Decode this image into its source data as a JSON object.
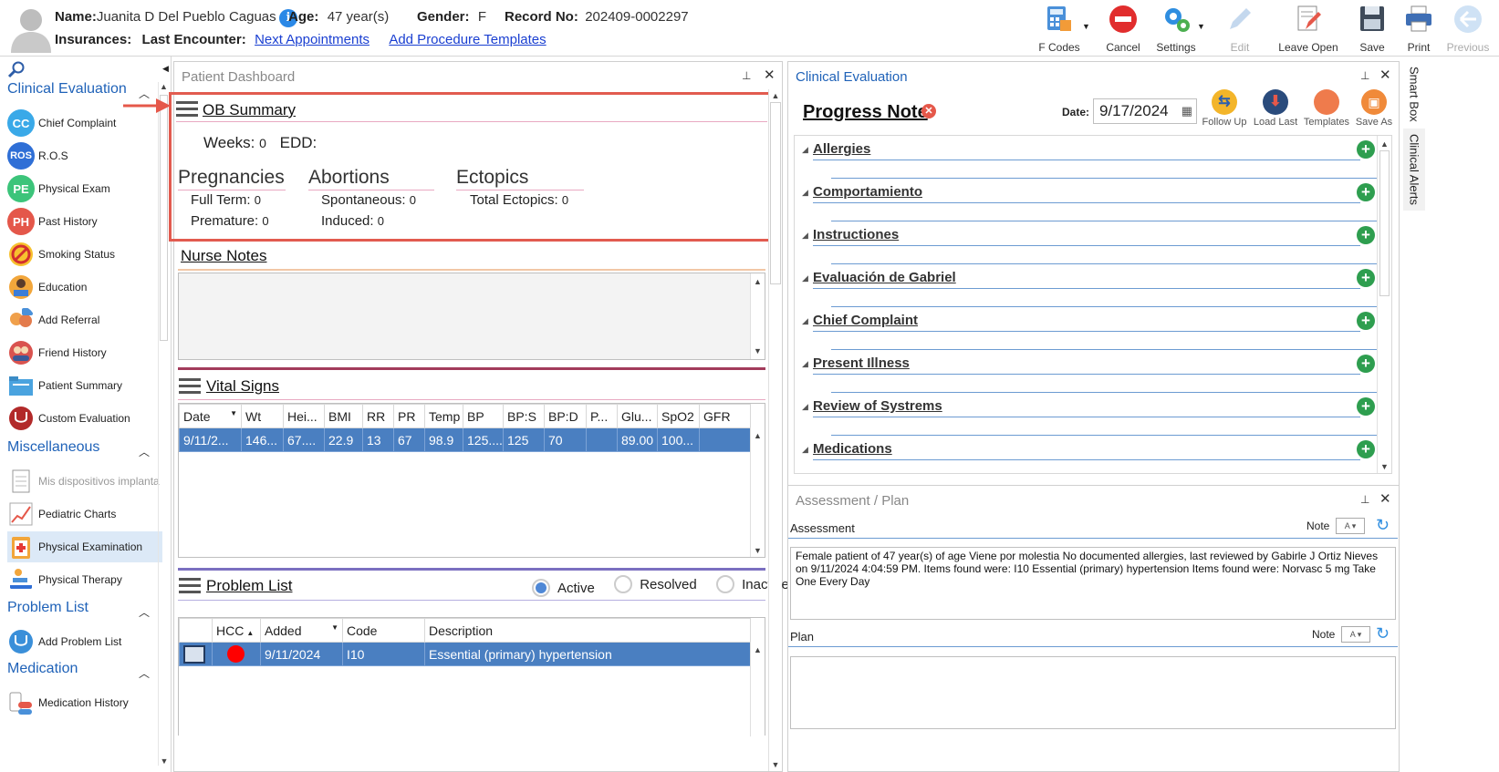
{
  "header": {
    "name_label": "Name:",
    "name": "Juanita D Del Pueblo Caguas",
    "age_label": "Age:",
    "age": "47 year(s)",
    "gender_label": "Gender:",
    "gender": "F",
    "record_label": "Record No:",
    "record": "202409-0002297",
    "insurances_label": "Insurances:",
    "last_encounter_label": "Last Encounter:",
    "next_appointments": "Next Appointments",
    "add_procedure_templates": "Add Procedure Templates",
    "info_glyph": "i"
  },
  "toolbar": {
    "fcodes": "F Codes",
    "cancel": "Cancel",
    "settings": "Settings",
    "edit": "Edit",
    "leave_open": "Leave Open",
    "save": "Save",
    "print": "Print",
    "previous": "Previous"
  },
  "sidebar": {
    "clinical_evaluation": "Clinical Evaluation",
    "ce_items": [
      {
        "label": "Chief Complaint",
        "badge": "CC",
        "color": "#3aa9e8"
      },
      {
        "label": "R.O.S",
        "badge": "ROS",
        "color": "#2f6fd6"
      },
      {
        "label": "Physical Exam",
        "badge": "PE",
        "color": "#3cc47a"
      },
      {
        "label": "Past History",
        "badge": "PH",
        "color": "#e4574a"
      },
      {
        "label": "Smoking Status",
        "badge": "",
        "color": "#f2b21d"
      },
      {
        "label": "Education",
        "badge": "",
        "color": "#f2a63b"
      },
      {
        "label": "Add Referral",
        "badge": "",
        "color": "#f0a04b"
      },
      {
        "label": "Friend History",
        "badge": "",
        "color": "#d9534f"
      },
      {
        "label": "Patient Summary",
        "badge": "",
        "color": "#4aa3df"
      },
      {
        "label": "Custom Evaluation",
        "badge": "",
        "color": "#b22a2a"
      }
    ],
    "miscellaneous": "Miscellaneous",
    "misc_items": [
      {
        "label": "Mis dispositivos implanta"
      },
      {
        "label": "Pediatric Charts"
      },
      {
        "label": "Physical Examination"
      },
      {
        "label": "Physical Therapy"
      }
    ],
    "problem_list": "Problem List",
    "pl_items": [
      {
        "label": "Add Problem List"
      }
    ],
    "medication": "Medication",
    "med_items": [
      {
        "label": "Medication History"
      }
    ]
  },
  "dashboard": {
    "title": "Patient Dashboard",
    "ob_summary": {
      "title": "OB Summary",
      "weeks_label": "Weeks:",
      "weeks": "0",
      "edd_label": "EDD:",
      "pregnancies": "Pregnancies",
      "abortions": "Abortions",
      "ectopics": "Ectopics",
      "full_term_label": "Full Term:",
      "full_term": "0",
      "premature_label": "Premature:",
      "premature": "0",
      "spontaneous_label": "Spontaneous:",
      "spontaneous": "0",
      "induced_label": "Induced:",
      "induced": "0",
      "total_ectopics_label": "Total Ectopics:",
      "total_ectopics": "0"
    },
    "nurse_notes": {
      "title": "Nurse Notes"
    },
    "vital_signs": {
      "title": "Vital Signs",
      "columns": [
        "Date",
        "Wt",
        "Hei...",
        "BMI",
        "RR",
        "PR",
        "Temp",
        "BP",
        "BP:S",
        "BP:D",
        "P...",
        "Glu...",
        "SpO2",
        "GFR"
      ],
      "row": [
        "9/11/2...",
        "146...",
        "67....",
        "22.9",
        "13",
        "67",
        "98.9",
        "125....",
        "125",
        "70",
        "",
        "89.00",
        "100...",
        ""
      ]
    },
    "problem_list": {
      "title": "Problem List",
      "filters": [
        "Active",
        "Resolved",
        "Inactive"
      ],
      "columns": [
        "",
        "HCC",
        "Added",
        "Code",
        "Description"
      ],
      "row": {
        "added": "9/11/2024",
        "code": "I10",
        "description": "Essential (primary) hypertension"
      }
    }
  },
  "clinical": {
    "title": "Clinical Evaluation",
    "note_title": "Progress Note",
    "date_label": "Date:",
    "date": "9/17/2024",
    "buttons": [
      "Follow Up",
      "Load Last",
      "Templates",
      "Save As"
    ],
    "sections": [
      "Allergies",
      "Comportamiento",
      "Instructiones",
      "Evaluación de Gabriel",
      "Chief Complaint",
      "Present Illness",
      "Review of Systrems",
      "Medications"
    ]
  },
  "assessment_plan": {
    "title": "Assessment / Plan",
    "assessment_label": "Assessment",
    "plan_label": "Plan",
    "note_label": "Note",
    "assessment_text": "Female patient of 47 year(s) of age Viene por molestia     No documented allergies, last reviewed by Gabirle J Ortiz Nieves on 9/11/2024 4:04:59 PM.     Items found were:  I10 Essential (primary) hypertension  Items found were:  Norvasc 5 mg Take One Every Day"
  },
  "right_tabs": [
    "Smart Box",
    "Clinical Alerts"
  ]
}
